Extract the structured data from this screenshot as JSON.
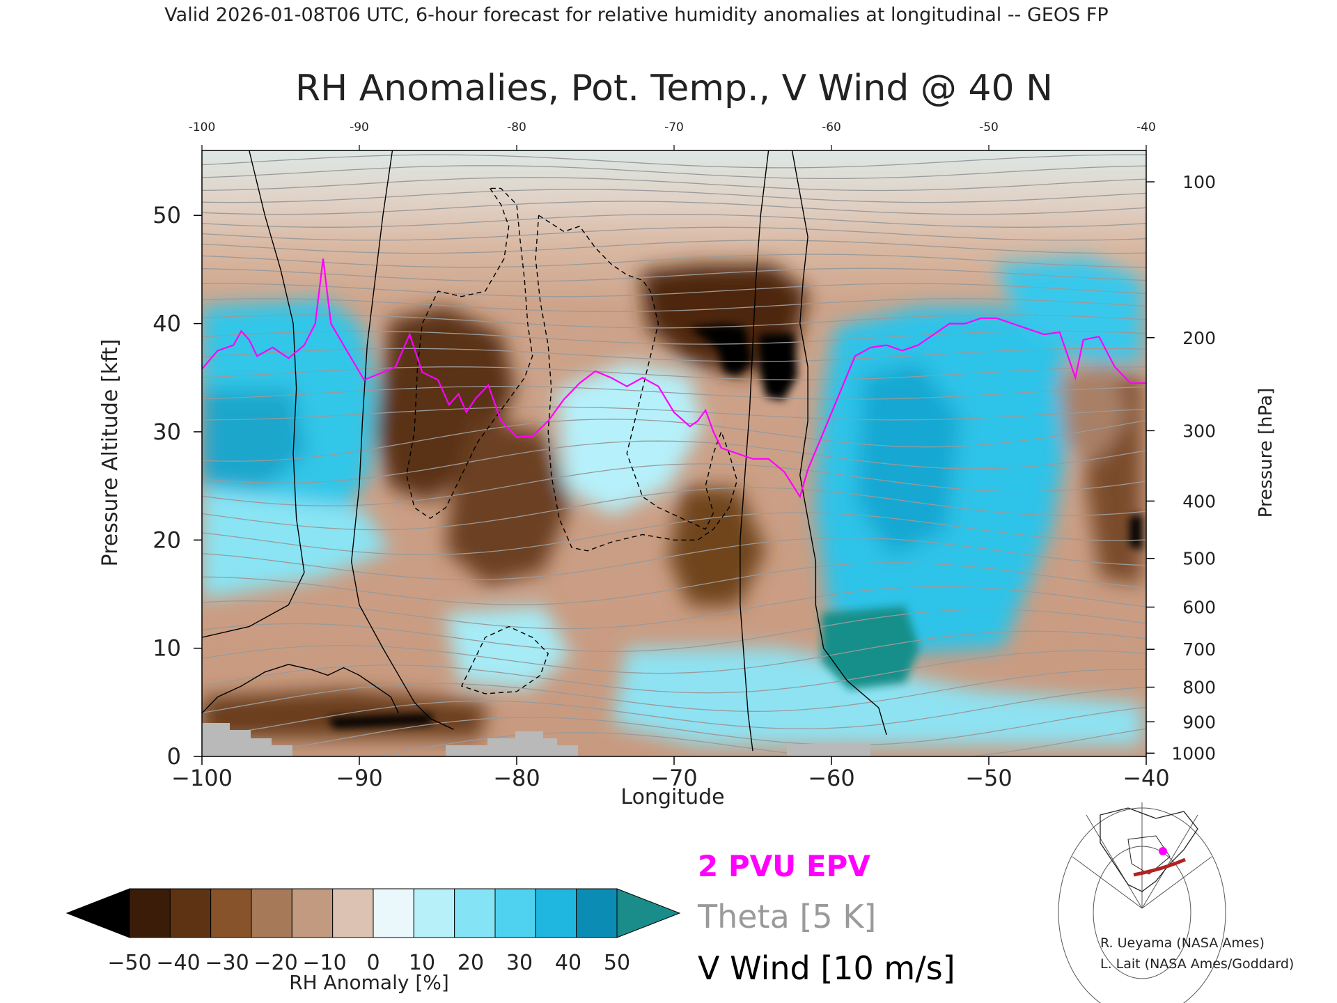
{
  "header": "Valid 2026-01-08T06 UTC, 6-hour forecast for relative humidity anomalies at longitudinal -- GEOS FP",
  "chart_data": {
    "type": "heatmap",
    "title": "RH Anomalies, Pot. Temp., V Wind @ 40 N",
    "xlabel": "Longitude",
    "ylabel": "Pressure Altitude [kft]",
    "y2label": "Pressure [hPa]",
    "xlim": [
      -100,
      -40
    ],
    "ylim": [
      0,
      56
    ],
    "x_ticks": [
      -100,
      -90,
      -80,
      -70,
      -60,
      -50,
      -40
    ],
    "y_ticks": [
      0,
      10,
      20,
      30,
      40,
      50
    ],
    "pressure_ticks": [
      {
        "hPa": 100,
        "kft": 53.1
      },
      {
        "hPa": 200,
        "kft": 38.7
      },
      {
        "hPa": 300,
        "kft": 30.1
      },
      {
        "hPa": 400,
        "kft": 23.6
      },
      {
        "hPa": 500,
        "kft": 18.3
      },
      {
        "hPa": 600,
        "kft": 13.8
      },
      {
        "hPa": 700,
        "kft": 9.9
      },
      {
        "hPa": 800,
        "kft": 6.4
      },
      {
        "hPa": 900,
        "kft": 3.2
      },
      {
        "hPa": 1000,
        "kft": 0.3
      }
    ],
    "colorbar": {
      "label": "RH Anomaly [%]",
      "ticks": [
        -50,
        -40,
        -30,
        -20,
        -10,
        0,
        10,
        20,
        30,
        40,
        50
      ],
      "colors": [
        "#000000",
        "#3a1c08",
        "#5e3314",
        "#86532b",
        "#a67a58",
        "#c29a80",
        "#dcc2b2",
        "#eaf8fc",
        "#b8f0fa",
        "#84e4f6",
        "#4fd2ef",
        "#1fb7df",
        "#0b8cb4",
        "#1a8c8a"
      ]
    },
    "epv": {
      "label": "2 PVU EPV",
      "color": "#ff00ff",
      "points": [
        [
          -100,
          35.8
        ],
        [
          -99,
          37.5
        ],
        [
          -98,
          38
        ],
        [
          -97.5,
          39.3
        ],
        [
          -97,
          38.5
        ],
        [
          -96.5,
          37
        ],
        [
          -95.5,
          37.8
        ],
        [
          -94.5,
          36.8
        ],
        [
          -93.5,
          38
        ],
        [
          -92.8,
          40
        ],
        [
          -92.3,
          46
        ],
        [
          -91.8,
          40
        ],
        [
          -91,
          38
        ],
        [
          -89.7,
          34.8
        ],
        [
          -88.5,
          35.5
        ],
        [
          -87.7,
          36
        ],
        [
          -86.8,
          39
        ],
        [
          -86,
          35.5
        ],
        [
          -85,
          34.8
        ],
        [
          -84.3,
          32.5
        ],
        [
          -83.7,
          33.5
        ],
        [
          -83.2,
          31.8
        ],
        [
          -82.6,
          33.1
        ],
        [
          -81.8,
          34.3
        ],
        [
          -81,
          31
        ],
        [
          -80,
          29.5
        ],
        [
          -79,
          29.6
        ],
        [
          -78,
          31
        ],
        [
          -77,
          33
        ],
        [
          -76,
          34.5
        ],
        [
          -75,
          35.6
        ],
        [
          -74,
          35
        ],
        [
          -73,
          34.2
        ],
        [
          -72,
          35
        ],
        [
          -71,
          34.2
        ],
        [
          -70,
          31.8
        ],
        [
          -69,
          30.5
        ],
        [
          -68.5,
          31
        ],
        [
          -68,
          32
        ],
        [
          -67.5,
          30
        ],
        [
          -67,
          28.5
        ],
        [
          -66,
          28
        ],
        [
          -65,
          27.5
        ],
        [
          -64,
          27.5
        ],
        [
          -63,
          26.3
        ],
        [
          -62,
          24
        ],
        [
          -61.5,
          26.5
        ],
        [
          -60.5,
          30
        ],
        [
          -59.5,
          33.5
        ],
        [
          -58.5,
          37
        ],
        [
          -57.5,
          37.8
        ],
        [
          -56.5,
          38
        ],
        [
          -55.5,
          37.5
        ],
        [
          -54.5,
          38
        ],
        [
          -53.5,
          39
        ],
        [
          -52.5,
          40
        ],
        [
          -51.5,
          40
        ],
        [
          -50.5,
          40.5
        ],
        [
          -49.5,
          40.5
        ],
        [
          -48.5,
          40
        ],
        [
          -47.5,
          39.5
        ],
        [
          -46.5,
          39
        ],
        [
          -45.5,
          39.2
        ],
        [
          -44.5,
          35
        ],
        [
          -44,
          38.5
        ],
        [
          -43,
          38.8
        ],
        [
          -42,
          36
        ],
        [
          -41,
          34.5
        ],
        [
          -40,
          34.5
        ]
      ]
    },
    "theta": {
      "label": "Theta [5 K]",
      "color": "#9a9a9a",
      "levels_K": [
        260,
        265,
        270,
        275,
        280,
        285,
        290,
        295,
        300,
        305,
        310,
        315,
        320,
        325,
        330,
        335,
        340,
        345,
        350,
        355,
        360,
        365,
        370,
        375,
        380,
        385,
        390,
        395,
        400,
        405,
        410,
        415,
        420
      ],
      "level_kft": [
        0.8,
        2.3,
        3.9,
        5.6,
        7.4,
        9.3,
        11.4,
        13.6,
        15.9,
        18.3,
        20.7,
        23.1,
        25.4,
        27.6,
        29.7,
        31.7,
        33.6,
        35.4,
        37.1,
        38.7,
        40.2,
        41.7,
        43.1,
        44.5,
        45.8,
        47.1,
        48.3,
        49.5,
        50.7,
        51.8,
        52.9,
        54.0,
        55.0
      ]
    },
    "v_wind": {
      "label": "V Wind [10 m/s]",
      "color": "#000000",
      "lines": [
        {
          "value": 0,
          "points": [
            [
              -87.9,
              56
            ],
            [
              -88.5,
              50
            ],
            [
              -89,
              44
            ],
            [
              -89.5,
              38
            ],
            [
              -89.8,
              31
            ],
            [
              -90,
              25
            ],
            [
              -90.5,
              18
            ],
            [
              -90,
              14
            ],
            [
              -88.5,
              10
            ],
            [
              -87.3,
              7
            ],
            [
              -86.5,
              5
            ],
            [
              -85.5,
              3.5
            ],
            [
              -84,
              2.5
            ]
          ]
        },
        {
          "value": 0,
          "points": [
            [
              -64,
              56
            ],
            [
              -64.5,
              50
            ],
            [
              -64.8,
              44
            ],
            [
              -65,
              38
            ],
            [
              -65.2,
              32
            ],
            [
              -65.5,
              26
            ],
            [
              -65.8,
              20
            ],
            [
              -65.8,
              14
            ],
            [
              -65.5,
              8
            ],
            [
              -65.3,
              4
            ],
            [
              -65,
              0.5
            ]
          ]
        },
        {
          "value": 10,
          "points": [
            [
              -97,
              56
            ],
            [
              -96,
              50
            ],
            [
              -95,
              45
            ],
            [
              -94.2,
              40
            ],
            [
              -94,
              34
            ],
            [
              -94.2,
              28
            ],
            [
              -94,
              22
            ],
            [
              -93.5,
              17
            ],
            [
              -94.5,
              14
            ],
            [
              -97,
              12
            ],
            [
              -100,
              11
            ]
          ]
        },
        {
          "value": 10,
          "points": [
            [
              -62.5,
              56
            ],
            [
              -62,
              52
            ],
            [
              -61.5,
              48
            ],
            [
              -61.8,
              44
            ],
            [
              -62,
              40
            ],
            [
              -61.5,
              36
            ],
            [
              -61.5,
              31
            ],
            [
              -62,
              26
            ],
            [
              -61.5,
              22
            ],
            [
              -61,
              18
            ],
            [
              -61,
              14
            ],
            [
              -60.5,
              10
            ],
            [
              -59,
              7
            ],
            [
              -57,
              4.5
            ],
            [
              -56.5,
              2
            ]
          ]
        },
        {
          "value": 10,
          "points": [
            [
              -100,
              4
            ],
            [
              -99,
              5.5
            ],
            [
              -97.5,
              6.5
            ],
            [
              -96,
              7.8
            ],
            [
              -94.5,
              8.5
            ],
            [
              -93,
              8
            ],
            [
              -92,
              7.5
            ],
            [
              -91,
              8.2
            ],
            [
              -90,
              7.5
            ],
            [
              -89,
              6.5
            ],
            [
              -88,
              5.5
            ],
            [
              -87.5,
              4
            ]
          ]
        },
        {
          "value": -10,
          "points": [
            [
              -81.7,
              52.5
            ],
            [
              -81,
              51
            ],
            [
              -80.5,
              49
            ],
            [
              -80.8,
              46
            ],
            [
              -82,
              43
            ],
            [
              -83.5,
              42.5
            ],
            [
              -85,
              43
            ],
            [
              -86,
              40
            ],
            [
              -86.3,
              36
            ],
            [
              -86.5,
              30
            ],
            [
              -87,
              26
            ],
            [
              -86.5,
              23
            ],
            [
              -85.5,
              22
            ],
            [
              -84.5,
              23
            ],
            [
              -83.5,
              26
            ],
            [
              -82.5,
              29
            ],
            [
              -81.5,
              31
            ],
            [
              -80.5,
              33
            ],
            [
              -79.5,
              35
            ],
            [
              -79,
              37
            ],
            [
              -79.3,
              40
            ],
            [
              -79.5,
              44
            ],
            [
              -79.8,
              48
            ],
            [
              -80,
              51
            ],
            [
              -81,
              52.5
            ],
            [
              -81.7,
              52.5
            ]
          ]
        },
        {
          "value": -10,
          "points": [
            [
              -78.6,
              50
            ],
            [
              -77,
              48.5
            ],
            [
              -76,
              49
            ],
            [
              -75,
              47
            ],
            [
              -74,
              45.5
            ],
            [
              -73,
              44.5
            ],
            [
              -72,
              44
            ],
            [
              -71.5,
              43
            ],
            [
              -71,
              40
            ],
            [
              -71.5,
              37
            ],
            [
              -72,
              34
            ],
            [
              -72.5,
              31
            ],
            [
              -73,
              28
            ],
            [
              -72.5,
              26
            ],
            [
              -72,
              24
            ],
            [
              -71,
              23
            ],
            [
              -69.5,
              22
            ],
            [
              -68,
              21
            ],
            [
              -67.5,
              22.5
            ],
            [
              -68,
              25
            ],
            [
              -67.5,
              28
            ],
            [
              -67,
              30
            ],
            [
              -66.5,
              28
            ],
            [
              -66,
              25.5
            ],
            [
              -66.5,
              23
            ],
            [
              -67.5,
              21
            ],
            [
              -68.5,
              20
            ],
            [
              -70,
              20
            ],
            [
              -72,
              20.5
            ],
            [
              -74,
              19.8
            ],
            [
              -75.5,
              19
            ],
            [
              -76.5,
              19.3
            ],
            [
              -77.3,
              22
            ],
            [
              -77.8,
              26
            ],
            [
              -78,
              30
            ],
            [
              -77.8,
              34
            ],
            [
              -78,
              38
            ],
            [
              -78.5,
              42
            ],
            [
              -78.8,
              46
            ],
            [
              -78.6,
              50
            ]
          ]
        },
        {
          "value": -10,
          "points": [
            [
              -83,
              8
            ],
            [
              -82,
              11
            ],
            [
              -80.5,
              12
            ],
            [
              -79,
              11
            ],
            [
              -78,
              9.5
            ],
            [
              -78.5,
              7.5
            ],
            [
              -80,
              6
            ],
            [
              -82,
              5.8
            ],
            [
              -83.5,
              6.5
            ],
            [
              -83,
              8
            ]
          ]
        }
      ]
    },
    "extra": {
      "title": "RH Anomalies, Pot. Temp., V Wind @ 40 N",
      "credits": [
        "R. Ueyama (NASA Ames)",
        "L. Lait (NASA Ames/Goddard)"
      ]
    }
  }
}
